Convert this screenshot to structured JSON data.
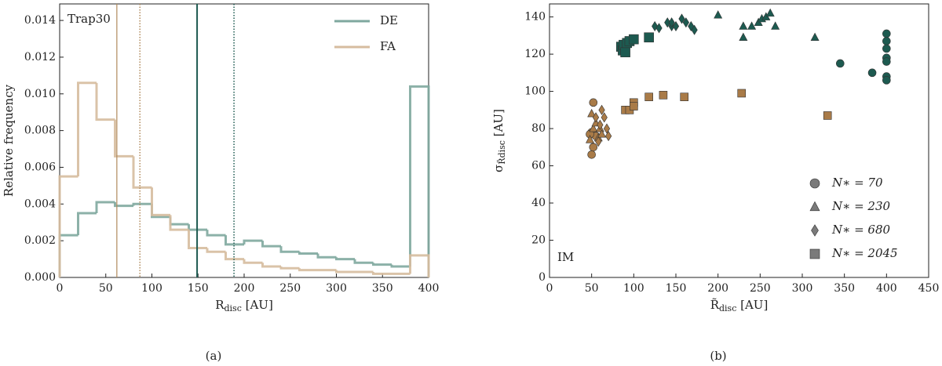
{
  "chart_data": [
    {
      "type": "histogram",
      "xlabel": [
        "R",
        "disc",
        " [AU]"
      ],
      "ylabel": "Relative frequency",
      "caption": "(a)",
      "annotation": "Trap30",
      "bins": [
        0,
        20,
        40,
        60,
        80,
        100,
        120,
        140,
        160,
        180,
        200,
        220,
        240,
        260,
        280,
        300,
        320,
        340,
        360,
        380,
        400
      ],
      "series": [
        {
          "name": "DE",
          "color": "#7fa89f",
          "values": [
            0.0023,
            0.0035,
            0.0041,
            0.0039,
            0.004,
            0.0033,
            0.0029,
            0.0026,
            0.0023,
            0.0018,
            0.002,
            0.0017,
            0.0014,
            0.0013,
            0.0011,
            0.001,
            0.0008,
            0.0007,
            0.0006,
            0.0104
          ]
        },
        {
          "name": "FA",
          "color": "#d6bc9f",
          "values": [
            0.0055,
            0.0106,
            0.0086,
            0.0066,
            0.0049,
            0.0034,
            0.0026,
            0.0016,
            0.0014,
            0.001,
            0.0008,
            0.0006,
            0.0005,
            0.0004,
            0.0004,
            0.0003,
            0.0003,
            0.0002,
            0.0002,
            0.0012
          ]
        }
      ],
      "vlines": [
        {
          "x": 62,
          "color": "#b08a5c",
          "style": "solid"
        },
        {
          "x": 87,
          "color": "#b08a5c",
          "style": "dotted"
        },
        {
          "x": 149,
          "color": "#1d5a50",
          "style": "solid"
        },
        {
          "x": 189,
          "color": "#1d5a50",
          "style": "dotted"
        }
      ],
      "xlim": [
        0,
        400
      ],
      "xticks": [
        0,
        50,
        100,
        150,
        200,
        250,
        300,
        350,
        400
      ],
      "ylim": [
        0,
        0.0149
      ],
      "yticks": [
        {
          "value": 0,
          "label": "0.000"
        },
        {
          "value": 0.002,
          "label": "0.002"
        },
        {
          "value": 0.004,
          "label": "0.004"
        },
        {
          "value": 0.006,
          "label": "0.006"
        },
        {
          "value": 0.008,
          "label": "0.008"
        },
        {
          "value": 0.01,
          "label": "0.010"
        },
        {
          "value": 0.012,
          "label": "0.012"
        },
        {
          "value": 0.014,
          "label": "0.014"
        }
      ],
      "legend": "upper right",
      "grid": false
    },
    {
      "type": "scatter",
      "xlabel": [
        "R̃",
        "disc",
        " [AU]"
      ],
      "ylabel": [
        "σ",
        "R̃disc",
        " [AU]"
      ],
      "caption": "(b)",
      "annotation": "IM",
      "series": [
        {
          "marker": "circle",
          "color": "#1d5a50",
          "x": [
            345,
            383,
            400,
            400,
            400,
            400,
            400,
            400,
            400
          ],
          "values": [
            115,
            110,
            131,
            127,
            123,
            118,
            116,
            108,
            106
          ]
        },
        {
          "marker": "triangle",
          "color": "#1d5a50",
          "x": [
            200,
            230,
            230,
            240,
            248,
            252,
            257,
            262,
            268,
            315
          ],
          "values": [
            141,
            135,
            129,
            135,
            137,
            139,
            140,
            142,
            135,
            129
          ]
        },
        {
          "marker": "diamond",
          "color": "#1d5a50",
          "x": [
            125,
            130,
            140,
            145,
            145,
            150,
            157,
            162,
            168,
            172
          ],
          "values": [
            135,
            134,
            137,
            135,
            137,
            135,
            139,
            137,
            135,
            133
          ]
        },
        {
          "marker": "square",
          "color": "#1d5a50",
          "x": [
            85,
            87,
            88,
            90,
            92,
            95,
            100,
            118
          ],
          "values": [
            124,
            122,
            125,
            121,
            126,
            127,
            128,
            129
          ]
        },
        {
          "marker": "circle",
          "color": "#a97b48",
          "x": [
            50,
            52,
            50,
            52,
            55,
            48
          ],
          "values": [
            66,
            70,
            78,
            94,
            76,
            77
          ]
        },
        {
          "marker": "triangle",
          "color": "#a97b48",
          "x": [
            50,
            52,
            55,
            58,
            60,
            62,
            48
          ],
          "values": [
            88,
            80,
            83,
            75,
            80,
            77,
            74
          ]
        },
        {
          "marker": "diamond",
          "color": "#a97b48",
          "x": [
            55,
            60,
            62,
            65,
            68,
            70,
            58
          ],
          "values": [
            86,
            82,
            90,
            86,
            80,
            76,
            73
          ]
        },
        {
          "marker": "square",
          "color": "#a97b48",
          "x": [
            90,
            95,
            100,
            100,
            118,
            135,
            160,
            228,
            330
          ],
          "values": [
            90,
            90,
            94,
            92,
            97,
            98,
            97,
            99,
            87
          ]
        }
      ],
      "legend_entries": [
        {
          "marker": "circle",
          "label": "N∗ = 70"
        },
        {
          "marker": "triangle",
          "label": "N∗ = 230"
        },
        {
          "marker": "diamond",
          "label": "N∗ = 680"
        },
        {
          "marker": "square",
          "label": "N∗ = 2045"
        }
      ],
      "legend_color": "#7a7a7a",
      "legend": "lower right",
      "xlim": [
        0,
        450
      ],
      "xticks": [
        0,
        50,
        100,
        150,
        200,
        250,
        300,
        350,
        400,
        450
      ],
      "ylim": [
        0,
        147
      ],
      "yticks": [
        0,
        20,
        40,
        60,
        80,
        100,
        120,
        140
      ],
      "grid": false
    }
  ]
}
